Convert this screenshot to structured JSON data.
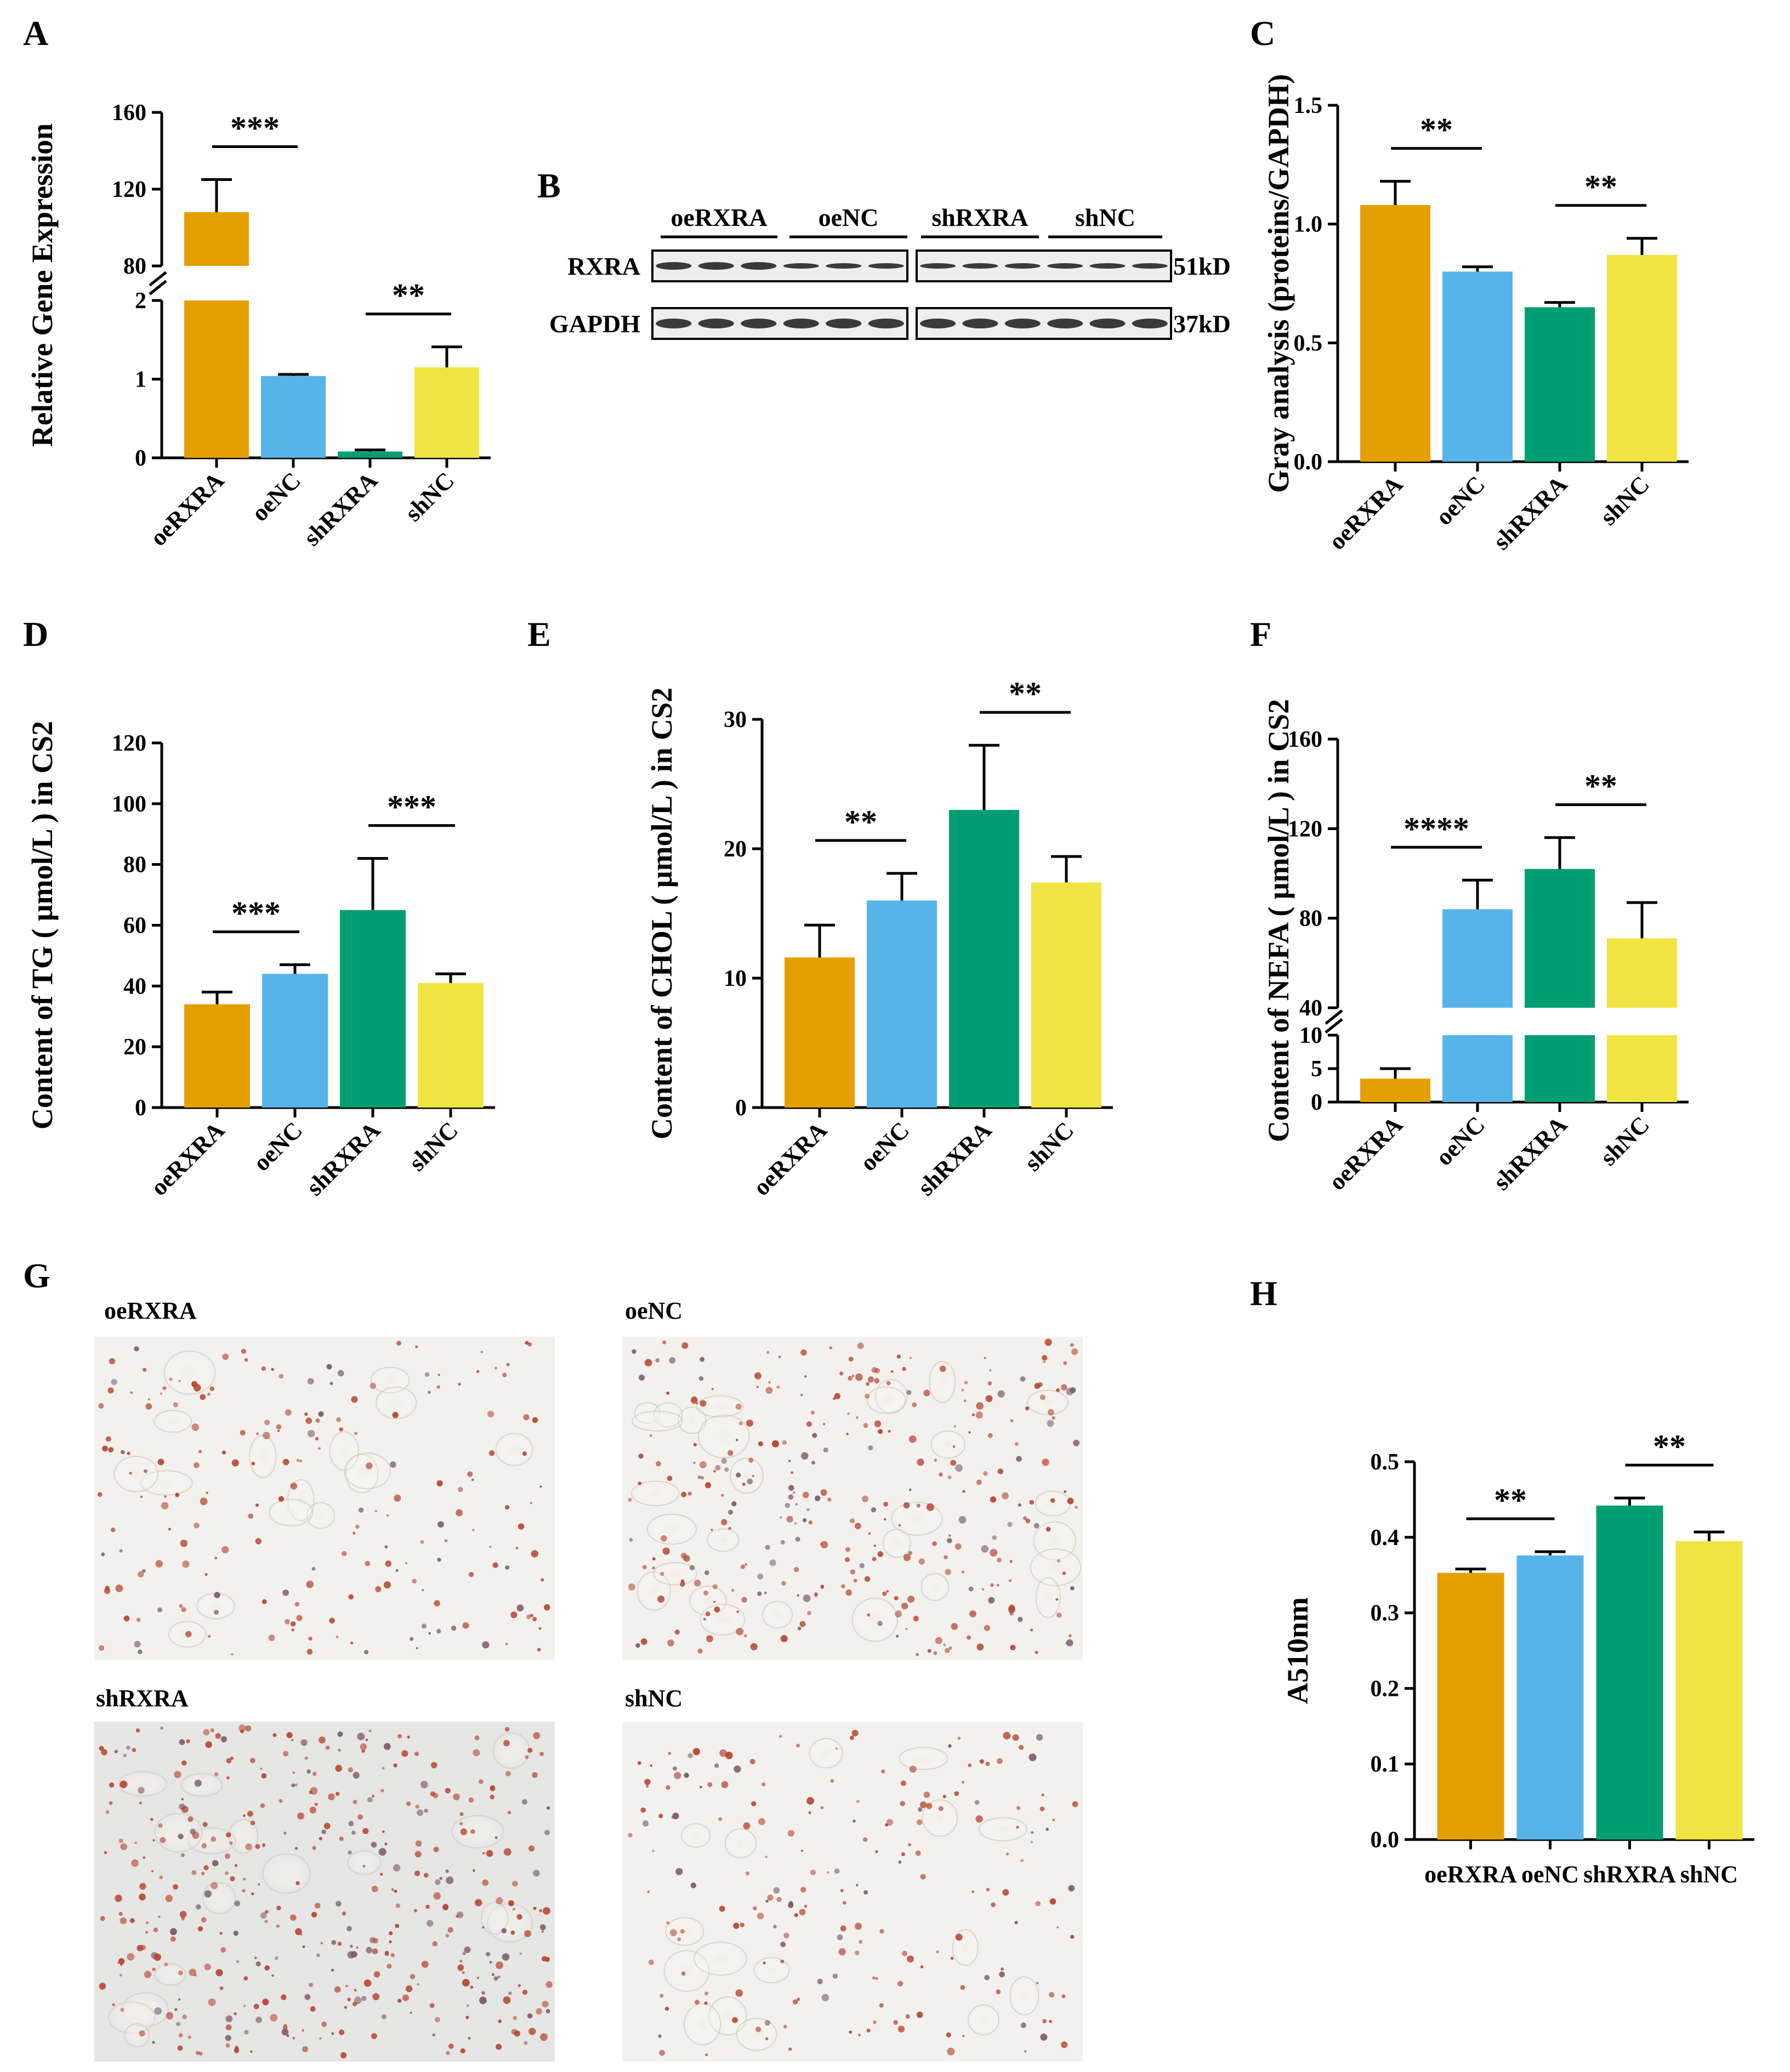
{
  "colors": {
    "oe": "#E69F00",
    "nc": "#56B4E9",
    "sh": "#009E73",
    "shnc": "#F0E442",
    "blotBg": "#EEEEEE",
    "band": "#1A1A1A"
  },
  "chart_data": [
    {
      "panel": "A",
      "type": "bar",
      "ylabel": "Relative Gene Expression",
      "categories": [
        "oeRXRA",
        "oeNC",
        "shRXRA",
        "shNC"
      ],
      "values": [
        108,
        1.04,
        0.08,
        1.15
      ],
      "errors": [
        17,
        0.02,
        0.02,
        0.26
      ],
      "axis_break": {
        "lower": [
          0,
          2
        ],
        "upper": [
          80,
          160
        ]
      },
      "yticks_lower": [
        "0",
        "1",
        "2"
      ],
      "yticks_upper": [
        "80",
        "120",
        "160"
      ],
      "significance": [
        {
          "from": 0,
          "to": 1,
          "label": "***"
        },
        {
          "from": 2,
          "to": 3,
          "label": "**"
        }
      ]
    },
    {
      "panel": "C",
      "type": "bar",
      "ylabel": "Gray analysis (proteins/GAPDH)",
      "categories": [
        "oeRXRA",
        "oeNC",
        "shRXRA",
        "shNC"
      ],
      "values": [
        1.08,
        0.8,
        0.65,
        0.87
      ],
      "errors": [
        0.1,
        0.02,
        0.02,
        0.07
      ],
      "ylim": [
        0,
        1.5
      ],
      "yticks": [
        "0.0",
        "0.5",
        "1.0",
        "1.5"
      ],
      "significance": [
        {
          "from": 0,
          "to": 1,
          "label": "**"
        },
        {
          "from": 2,
          "to": 3,
          "label": "**"
        }
      ]
    },
    {
      "panel": "D",
      "type": "bar",
      "ylabel": "Content of TG ( μmol/L ) in CS2",
      "categories": [
        "oeRXRA",
        "oeNC",
        "shRXRA",
        "shNC"
      ],
      "values": [
        34,
        44,
        65,
        41
      ],
      "errors": [
        4,
        3,
        17,
        3
      ],
      "ylim": [
        0,
        120
      ],
      "yticks": [
        "0",
        "20",
        "40",
        "60",
        "80",
        "100",
        "120"
      ],
      "significance": [
        {
          "from": 0,
          "to": 1,
          "label": "***"
        },
        {
          "from": 2,
          "to": 3,
          "label": "***"
        }
      ]
    },
    {
      "panel": "E",
      "type": "bar",
      "ylabel": "Content of CHOL ( μmol/L ) in CS2",
      "categories": [
        "oeRXRA",
        "oeNC",
        "shRXRA",
        "shNC"
      ],
      "values": [
        11.6,
        16,
        23,
        17.4
      ],
      "errors": [
        2.5,
        2.1,
        5,
        2
      ],
      "ylim": [
        0,
        30
      ],
      "yticks": [
        "0",
        "10",
        "20",
        "30"
      ],
      "significance": [
        {
          "from": 0,
          "to": 1,
          "label": "**"
        },
        {
          "from": 2,
          "to": 3,
          "label": "**"
        }
      ]
    },
    {
      "panel": "F",
      "type": "bar",
      "ylabel": "Content of NEFA ( μmol/L ) in CS2",
      "categories": [
        "oeRXRA",
        "oeNC",
        "shRXRA",
        "shNC"
      ],
      "values": [
        3.5,
        84,
        102,
        71
      ],
      "errors": [
        1.5,
        13,
        14,
        16
      ],
      "axis_break": {
        "lower": [
          0,
          10
        ],
        "upper": [
          40,
          160
        ]
      },
      "yticks_lower": [
        "0",
        "5",
        "10"
      ],
      "yticks_upper": [
        "40",
        "80",
        "120",
        "160"
      ],
      "significance": [
        {
          "from": 0,
          "to": 1,
          "label": "****"
        },
        {
          "from": 2,
          "to": 3,
          "label": "**"
        }
      ]
    },
    {
      "panel": "H",
      "type": "bar",
      "ylabel": "A510nm",
      "categories": [
        "oeRXRA",
        "oeNC",
        "shRXRA",
        "shNC"
      ],
      "values": [
        0.353,
        0.376,
        0.442,
        0.395
      ],
      "errors": [
        0.005,
        0.005,
        0.01,
        0.012
      ],
      "ylim": [
        0,
        0.5
      ],
      "yticks": [
        "0.0",
        "0.1",
        "0.2",
        "0.3",
        "0.4",
        "0.5"
      ],
      "significance": [
        {
          "from": 0,
          "to": 1,
          "label": "**"
        },
        {
          "from": 2,
          "to": 3,
          "label": "**"
        }
      ]
    }
  ],
  "blot": {
    "panel": "B",
    "groups": [
      "oeRXRA",
      "oeNC",
      "shRXRA",
      "shNC"
    ],
    "rows": [
      {
        "label": "RXRA",
        "size": "51kD"
      },
      {
        "label": "GAPDH",
        "size": "37kD"
      }
    ]
  },
  "micrographs": {
    "panel": "G",
    "labels": [
      "oeRXRA",
      "oeNC",
      "shRXRA",
      "shNC"
    ]
  }
}
